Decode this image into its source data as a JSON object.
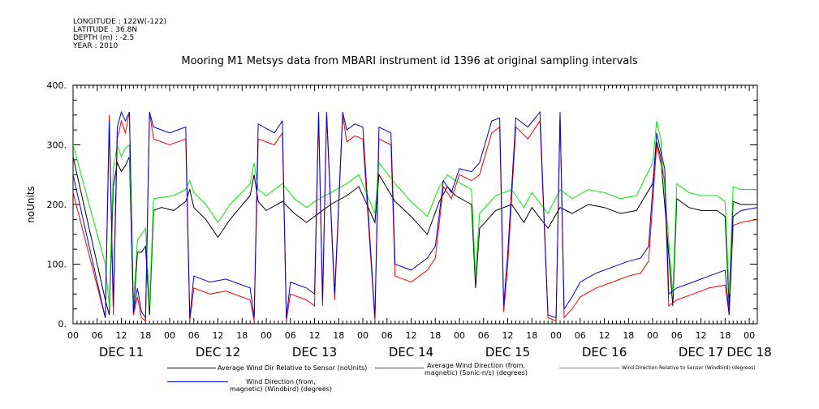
{
  "meta": {
    "longitude": "LONGITUDE : 122W(-122)",
    "latitude": "LATITUDE : 36.8N",
    "depth": "DEPTH (m) : -2.5",
    "year": "YEAR : 2010"
  },
  "chart_data": {
    "type": "line",
    "title": "Mooring M1 Metsys data from MBARI instrument id 1396 at original sampling intervals",
    "ylabel": "noUnits",
    "xlabel": "",
    "ylim": [
      0,
      400
    ],
    "yticks": [
      "0.",
      "100.",
      "200.",
      "300.",
      "400."
    ],
    "xlim": [
      0,
      170
    ],
    "hour_ticks": [
      "00",
      "06",
      "12",
      "18",
      "00",
      "06",
      "12",
      "18",
      "00",
      "06",
      "12",
      "18",
      "00",
      "06",
      "12",
      "18",
      "00",
      "06",
      "12",
      "18",
      "00",
      "06",
      "12",
      "18",
      "00",
      "06",
      "12",
      "18",
      "00",
      "06"
    ],
    "day_labels": [
      {
        "label": "DEC 11",
        "hour": 12
      },
      {
        "label": "DEC 12",
        "hour": 36
      },
      {
        "label": "DEC 13",
        "hour": 60
      },
      {
        "label": "DEC 14",
        "hour": 84
      },
      {
        "label": "DEC 15",
        "hour": 108
      },
      {
        "label": "DEC 16",
        "hour": 132
      },
      {
        "label": "DEC 17",
        "hour": 156
      },
      {
        "label": "DEC 18",
        "hour": 168
      }
    ],
    "grid": false,
    "legend_position": "bottom",
    "series": [
      {
        "name": "Average Wind Dir Relative to Sensor (noUnits)",
        "color": "#000000",
        "points": [
          [
            0,
            280
          ],
          [
            8,
            40
          ],
          [
            9,
            15
          ],
          [
            10,
            230
          ],
          [
            11,
            270
          ],
          [
            12,
            255
          ],
          [
            13,
            265
          ],
          [
            14,
            280
          ],
          [
            15,
            15
          ],
          [
            16,
            120
          ],
          [
            17,
            120
          ],
          [
            18,
            130
          ],
          [
            19,
            15
          ],
          [
            20,
            190
          ],
          [
            22,
            195
          ],
          [
            25,
            190
          ],
          [
            28,
            205
          ],
          [
            29,
            225
          ],
          [
            30,
            195
          ],
          [
            33,
            175
          ],
          [
            36,
            145
          ],
          [
            39,
            175
          ],
          [
            44,
            215
          ],
          [
            45,
            250
          ],
          [
            46,
            205
          ],
          [
            48,
            190
          ],
          [
            52,
            205
          ],
          [
            55,
            185
          ],
          [
            58,
            170
          ],
          [
            60,
            180
          ],
          [
            64,
            200
          ],
          [
            68,
            215
          ],
          [
            71,
            230
          ],
          [
            75,
            170
          ],
          [
            76,
            250
          ],
          [
            80,
            205
          ],
          [
            84,
            180
          ],
          [
            88,
            150
          ],
          [
            91,
            205
          ],
          [
            93,
            230
          ],
          [
            95,
            215
          ],
          [
            99,
            200
          ],
          [
            100,
            60
          ],
          [
            101,
            160
          ],
          [
            105,
            190
          ],
          [
            109,
            200
          ],
          [
            112,
            170
          ],
          [
            114,
            195
          ],
          [
            118,
            160
          ],
          [
            121,
            195
          ],
          [
            124,
            185
          ],
          [
            128,
            200
          ],
          [
            132,
            195
          ],
          [
            136,
            185
          ],
          [
            140,
            190
          ],
          [
            144,
            235
          ],
          [
            145,
            305
          ],
          [
            146,
            280
          ],
          [
            147,
            200
          ],
          [
            149,
            30
          ],
          [
            150,
            210
          ],
          [
            153,
            195
          ],
          [
            156,
            190
          ],
          [
            160,
            190
          ],
          [
            162,
            180
          ],
          [
            163,
            30
          ],
          [
            164,
            205
          ],
          [
            166,
            200
          ],
          [
            170,
            200
          ]
        ]
      },
      {
        "name": "Average Wind Direction (from, magnetic) (Sonic-n/s) (degrees)",
        "color": "#ff0000",
        "points": [
          [
            0,
            220
          ],
          [
            8,
            10
          ],
          [
            9,
            350
          ],
          [
            10,
            15
          ],
          [
            11,
            310
          ],
          [
            12,
            340
          ],
          [
            13,
            320
          ],
          [
            14,
            355
          ],
          [
            15,
            15
          ],
          [
            16,
            45
          ],
          [
            17,
            10
          ],
          [
            18,
            5
          ],
          [
            19,
            355
          ],
          [
            20,
            310
          ],
          [
            24,
            300
          ],
          [
            28,
            310
          ],
          [
            29,
            5
          ],
          [
            30,
            60
          ],
          [
            34,
            50
          ],
          [
            38,
            55
          ],
          [
            44,
            40
          ],
          [
            45,
            5
          ],
          [
            46,
            310
          ],
          [
            50,
            300
          ],
          [
            52,
            320
          ],
          [
            53,
            5
          ],
          [
            54,
            50
          ],
          [
            58,
            40
          ],
          [
            60,
            30
          ],
          [
            61,
            350
          ],
          [
            62,
            30
          ],
          [
            63,
            350
          ],
          [
            65,
            40
          ],
          [
            67,
            350
          ],
          [
            68,
            305
          ],
          [
            70,
            315
          ],
          [
            72,
            310
          ],
          [
            75,
            5
          ],
          [
            76,
            310
          ],
          [
            79,
            300
          ],
          [
            80,
            80
          ],
          [
            84,
            70
          ],
          [
            88,
            90
          ],
          [
            90,
            110
          ],
          [
            92,
            230
          ],
          [
            94,
            210
          ],
          [
            96,
            250
          ],
          [
            99,
            240
          ],
          [
            101,
            250
          ],
          [
            104,
            320
          ],
          [
            106,
            330
          ],
          [
            107,
            20
          ],
          [
            108,
            100
          ],
          [
            110,
            330
          ],
          [
            113,
            310
          ],
          [
            116,
            340
          ],
          [
            118,
            10
          ],
          [
            120,
            5
          ],
          [
            121,
            350
          ],
          [
            122,
            10
          ],
          [
            124,
            25
          ],
          [
            126,
            45
          ],
          [
            130,
            60
          ],
          [
            134,
            70
          ],
          [
            138,
            80
          ],
          [
            141,
            85
          ],
          [
            143,
            105
          ],
          [
            145,
            300
          ],
          [
            147,
            240
          ],
          [
            148,
            30
          ],
          [
            150,
            40
          ],
          [
            154,
            50
          ],
          [
            158,
            60
          ],
          [
            162,
            65
          ],
          [
            163,
            15
          ],
          [
            164,
            165
          ],
          [
            166,
            170
          ],
          [
            170,
            175
          ]
        ]
      },
      {
        "name": "Wind Direction Relative to Sensor (Windbird) (degrees)",
        "color": "#00ee00",
        "points": [
          [
            0,
            300
          ],
          [
            8,
            100
          ],
          [
            9,
            30
          ],
          [
            10,
            260
          ],
          [
            11,
            300
          ],
          [
            12,
            280
          ],
          [
            13,
            295
          ],
          [
            14,
            300
          ],
          [
            15,
            30
          ],
          [
            16,
            140
          ],
          [
            17,
            150
          ],
          [
            18,
            160
          ],
          [
            19,
            30
          ],
          [
            20,
            210
          ],
          [
            25,
            215
          ],
          [
            28,
            225
          ],
          [
            29,
            240
          ],
          [
            30,
            220
          ],
          [
            33,
            200
          ],
          [
            36,
            170
          ],
          [
            39,
            200
          ],
          [
            44,
            235
          ],
          [
            45,
            270
          ],
          [
            46,
            225
          ],
          [
            48,
            215
          ],
          [
            52,
            235
          ],
          [
            55,
            210
          ],
          [
            58,
            195
          ],
          [
            60,
            205
          ],
          [
            64,
            220
          ],
          [
            68,
            235
          ],
          [
            71,
            250
          ],
          [
            75,
            185
          ],
          [
            76,
            270
          ],
          [
            80,
            235
          ],
          [
            84,
            205
          ],
          [
            88,
            180
          ],
          [
            91,
            230
          ],
          [
            93,
            250
          ],
          [
            95,
            240
          ],
          [
            99,
            225
          ],
          [
            100,
            80
          ],
          [
            101,
            185
          ],
          [
            105,
            215
          ],
          [
            109,
            225
          ],
          [
            112,
            195
          ],
          [
            114,
            220
          ],
          [
            118,
            185
          ],
          [
            121,
            225
          ],
          [
            124,
            210
          ],
          [
            128,
            225
          ],
          [
            132,
            220
          ],
          [
            136,
            210
          ],
          [
            140,
            215
          ],
          [
            144,
            270
          ],
          [
            145,
            340
          ],
          [
            146,
            310
          ],
          [
            147,
            225
          ],
          [
            149,
            50
          ],
          [
            150,
            235
          ],
          [
            153,
            220
          ],
          [
            156,
            215
          ],
          [
            160,
            215
          ],
          [
            162,
            205
          ],
          [
            163,
            50
          ],
          [
            164,
            230
          ],
          [
            166,
            225
          ],
          [
            170,
            225
          ]
        ]
      },
      {
        "name": "Wind Direction (from, magnetic) (Windbird) (degrees)",
        "color": "#0000dd",
        "points": [
          [
            0,
            250
          ],
          [
            8,
            10
          ],
          [
            9,
            340
          ],
          [
            10,
            30
          ],
          [
            11,
            330
          ],
          [
            12,
            355
          ],
          [
            13,
            340
          ],
          [
            14,
            355
          ],
          [
            15,
            20
          ],
          [
            16,
            60
          ],
          [
            17,
            20
          ],
          [
            18,
            10
          ],
          [
            19,
            355
          ],
          [
            20,
            330
          ],
          [
            24,
            320
          ],
          [
            28,
            330
          ],
          [
            29,
            10
          ],
          [
            30,
            80
          ],
          [
            34,
            70
          ],
          [
            38,
            75
          ],
          [
            44,
            60
          ],
          [
            45,
            10
          ],
          [
            46,
            335
          ],
          [
            50,
            320
          ],
          [
            52,
            340
          ],
          [
            53,
            10
          ],
          [
            54,
            70
          ],
          [
            58,
            60
          ],
          [
            60,
            50
          ],
          [
            61,
            355
          ],
          [
            62,
            40
          ],
          [
            63,
            355
          ],
          [
            65,
            50
          ],
          [
            67,
            355
          ],
          [
            68,
            325
          ],
          [
            70,
            335
          ],
          [
            72,
            330
          ],
          [
            75,
            10
          ],
          [
            76,
            330
          ],
          [
            79,
            320
          ],
          [
            80,
            100
          ],
          [
            84,
            90
          ],
          [
            88,
            110
          ],
          [
            90,
            130
          ],
          [
            92,
            240
          ],
          [
            94,
            220
          ],
          [
            96,
            260
          ],
          [
            99,
            255
          ],
          [
            101,
            270
          ],
          [
            104,
            340
          ],
          [
            106,
            345
          ],
          [
            107,
            30
          ],
          [
            108,
            120
          ],
          [
            110,
            345
          ],
          [
            113,
            330
          ],
          [
            116,
            355
          ],
          [
            118,
            15
          ],
          [
            120,
            10
          ],
          [
            121,
            355
          ],
          [
            122,
            25
          ],
          [
            124,
            45
          ],
          [
            126,
            70
          ],
          [
            130,
            85
          ],
          [
            134,
            95
          ],
          [
            138,
            105
          ],
          [
            141,
            110
          ],
          [
            143,
            130
          ],
          [
            145,
            320
          ],
          [
            147,
            260
          ],
          [
            148,
            50
          ],
          [
            150,
            60
          ],
          [
            154,
            70
          ],
          [
            158,
            80
          ],
          [
            162,
            90
          ],
          [
            163,
            15
          ],
          [
            164,
            180
          ],
          [
            166,
            190
          ],
          [
            170,
            195
          ]
        ]
      }
    ]
  },
  "legend": [
    {
      "line1": "Average Wind Dir Relative to Sensor (noUnits)",
      "line2": ""
    },
    {
      "line1": "Average Wind Direction (from,",
      "line2": "magnetic) (Sonic-n/s) (degrees)"
    },
    {
      "line1": "Wind Direction Relative to Sensor (Windbird) (degrees)",
      "line2": ""
    },
    {
      "line1": "Wind Direction (from,",
      "line2": "magnetic) (Windbird) (degrees)"
    }
  ]
}
